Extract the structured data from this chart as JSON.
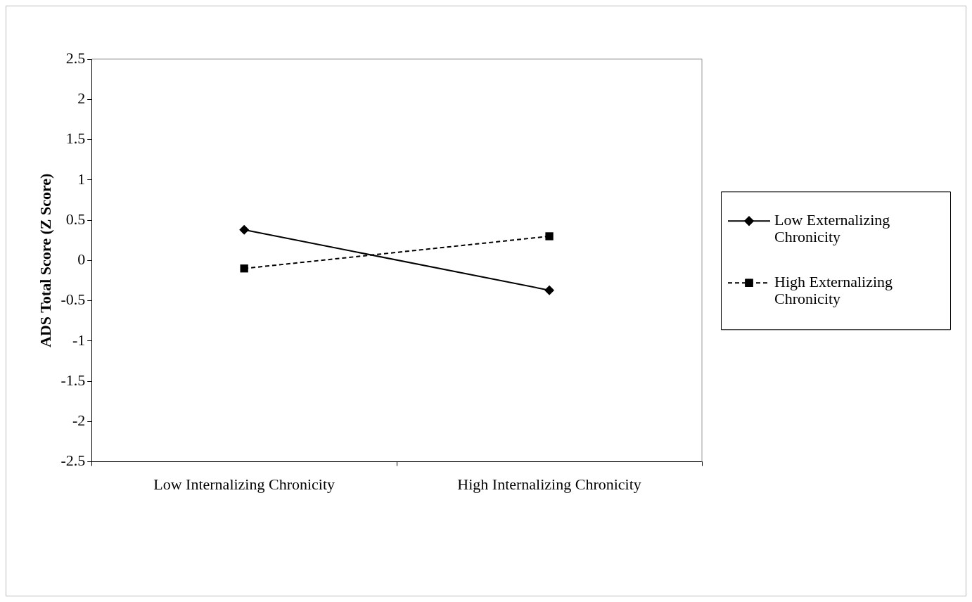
{
  "chart_data": {
    "type": "line",
    "ylabel": "ADS Total Score (Z Score)",
    "categories": [
      "Low Internalizing Chronicity",
      "High Internalizing Chronicity"
    ],
    "series": [
      {
        "name": "Low Externalizing Chronicity",
        "color": "#000000",
        "values": [
          0.38,
          -0.37
        ],
        "marker": "diamond",
        "line_style": "solid"
      },
      {
        "name": "High Externalizing Chronicity",
        "color": "#000000",
        "values": [
          -0.1,
          0.3
        ],
        "marker": "square",
        "line_style": "dashed"
      }
    ],
    "ylim": [
      -2.5,
      2.5
    ],
    "yticks": [
      -2.5,
      -2,
      -1.5,
      -1,
      -0.5,
      0,
      0.5,
      1,
      1.5,
      2,
      2.5
    ],
    "grid": false,
    "legend": "right"
  }
}
